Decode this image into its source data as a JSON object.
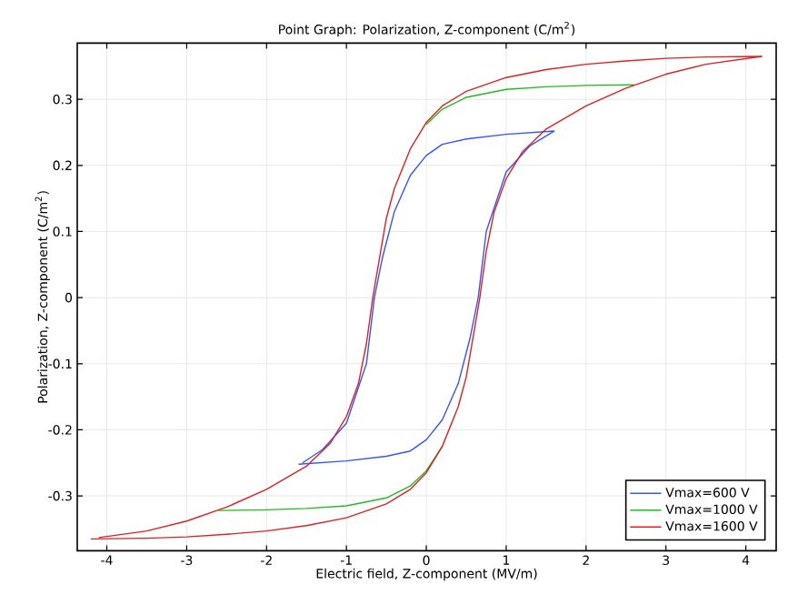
{
  "chart_data": {
    "type": "line",
    "title": "Point Graph: Polarization, Z-component (C/m$^{2}$)",
    "xlabel": "Electric field, Z-component (MV/m)",
    "ylabel": "Polarization, Z-component (C/m$^{2}$)",
    "xlim": [
      -4.37,
      4.38
    ],
    "ylim": [
      -0.383,
      0.385
    ],
    "xticks": [
      -4,
      -3,
      -2,
      -1,
      0,
      1,
      2,
      3,
      4
    ],
    "yticks": [
      -0.3,
      -0.2,
      -0.1,
      0,
      0.1,
      0.2,
      0.3
    ],
    "grid": true,
    "legend": "bottom right",
    "marker": "none",
    "line_style": "solid",
    "series": [
      {
        "name": "Vmax=600 V",
        "color": "#3355ff",
        "x": [
          -1.6,
          -1.0,
          -0.5,
          -0.2,
          0,
          0.2,
          0.4,
          0.55,
          0.65,
          0.75,
          1.0,
          1.3,
          1.6,
          1.0,
          0.5,
          0.2,
          0,
          -0.2,
          -0.4,
          -0.55,
          -0.65,
          -0.75,
          -1.0,
          -1.3,
          -1.55
        ],
        "values": [
          -0.252,
          -0.247,
          -0.24,
          -0.232,
          -0.215,
          -0.185,
          -0.13,
          -0.06,
          0,
          0.1,
          0.19,
          0.23,
          0.252,
          0.247,
          0.24,
          0.232,
          0.215,
          0.185,
          0.13,
          0.06,
          0,
          -0.1,
          -0.19,
          -0.23,
          -0.25
        ]
      },
      {
        "name": "Vmax=1000 V",
        "color": "#22bb22",
        "x": [
          -2.6,
          -2.0,
          -1.5,
          -1.0,
          -0.5,
          -0.2,
          0,
          0.2,
          0.4,
          0.5,
          0.6,
          0.67,
          0.75,
          0.85,
          1.0,
          1.2,
          1.5,
          2.0,
          2.6,
          2.0,
          1.5,
          1.0,
          0.5,
          0.2,
          0
        ],
        "values": [
          -0.322,
          -0.321,
          -0.319,
          -0.315,
          -0.303,
          -0.285,
          -0.262,
          -0.225,
          null,
          null,
          null,
          null,
          null,
          null,
          null,
          null,
          null,
          null,
          0.322,
          0.321,
          0.319,
          0.315,
          0.303,
          0.285,
          0.262
        ]
      },
      {
        "name": "Vmax=1600 V",
        "color": "#dd2222",
        "x": [
          -4.2,
          -3.5,
          -3.0,
          -2.5,
          -2.0,
          -1.5,
          -1.0,
          -0.5,
          -0.2,
          0,
          0.2,
          0.4,
          0.5,
          0.6,
          0.67,
          0.75,
          0.85,
          1.0,
          1.2,
          1.5,
          2.0,
          2.5,
          3.0,
          3.5,
          4.2,
          3.5,
          3.0,
          2.5,
          2.0,
          1.5,
          1.0,
          0.5,
          0.2,
          0,
          -0.2,
          -0.4,
          -0.5,
          -0.6,
          -0.67,
          -0.75,
          -0.85,
          -1.0,
          -1.2,
          -1.5,
          -2.0,
          -2.5,
          -3.0,
          -3.5,
          -4.1
        ],
        "values": [
          -0.365,
          -0.364,
          -0.362,
          -0.358,
          -0.353,
          -0.345,
          -0.333,
          -0.312,
          -0.29,
          -0.265,
          -0.225,
          -0.165,
          -0.12,
          -0.05,
          0,
          0.07,
          0.13,
          0.18,
          0.22,
          0.255,
          0.29,
          0.317,
          0.338,
          0.353,
          0.365,
          0.364,
          0.362,
          0.358,
          0.353,
          0.345,
          0.333,
          0.312,
          0.29,
          0.265,
          0.225,
          0.165,
          0.12,
          0.05,
          0,
          -0.07,
          -0.13,
          -0.18,
          -0.22,
          -0.255,
          -0.29,
          -0.317,
          -0.338,
          -0.353,
          -0.363
        ]
      }
    ]
  }
}
